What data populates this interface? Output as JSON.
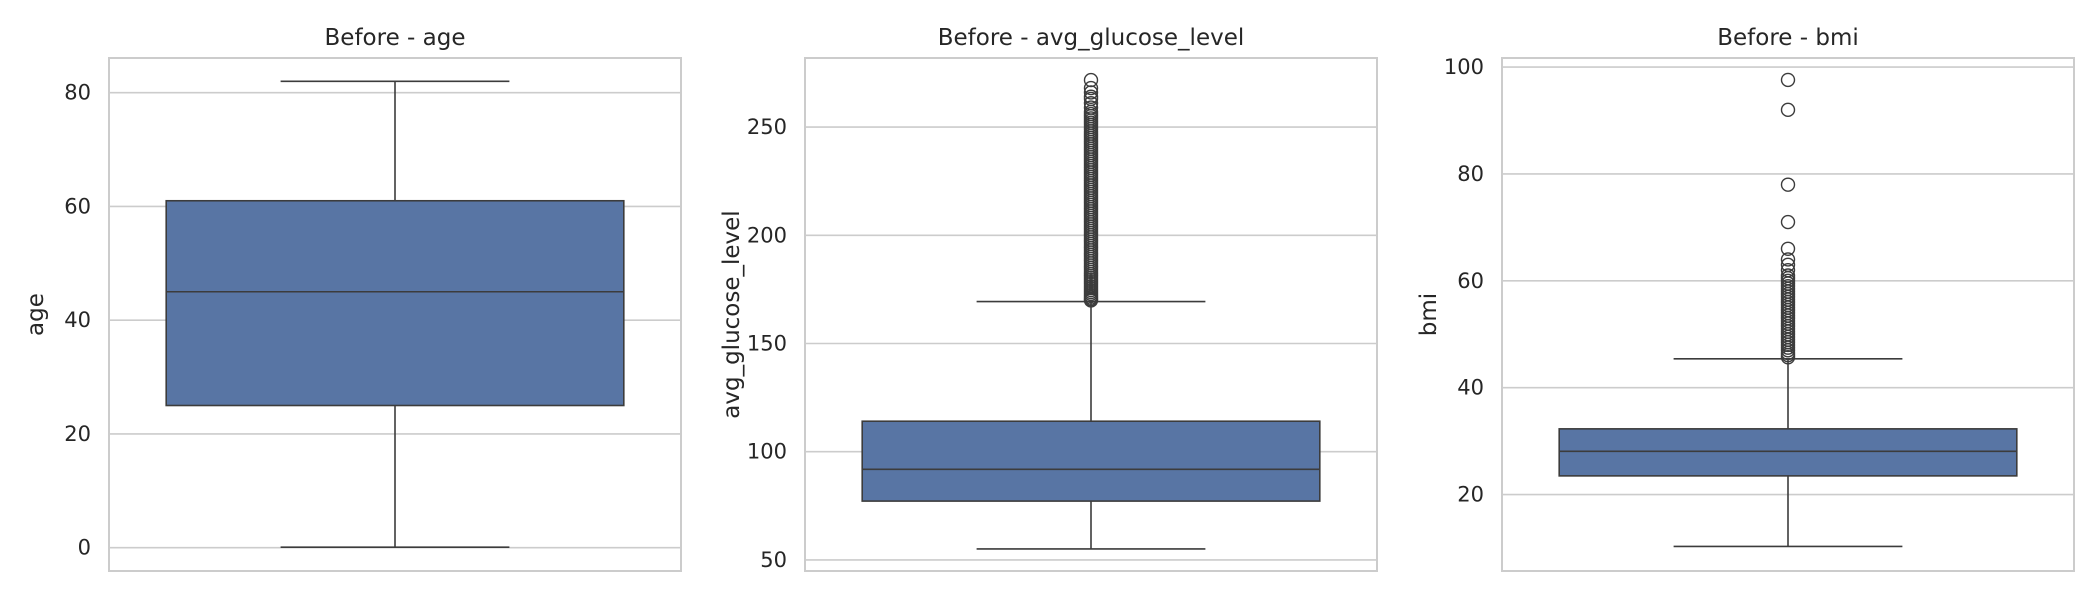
{
  "colors": {
    "box_fill": "#5875a4",
    "box_edge": "#3c3c3c",
    "grid": "#cccccc",
    "frame": "#cccccc",
    "text": "#262626"
  },
  "chart_data": [
    {
      "type": "box",
      "title": "Before - age",
      "ylabel": "age",
      "yticks": [
        0,
        20,
        40,
        60,
        80
      ],
      "ylim": [
        -4.1,
        86.1
      ],
      "grid": true,
      "whisker_low": 0.08,
      "q1": 25,
      "median": 45,
      "q3": 61,
      "whisker_high": 82,
      "outliers": []
    },
    {
      "type": "box",
      "title": "Before - avg_glucose_level",
      "ylabel": "avg_glucose_level",
      "yticks": [
        50,
        100,
        150,
        200,
        250
      ],
      "ylim": [
        44.9,
        281.9
      ],
      "grid": true,
      "whisker_low": 55.1,
      "q1": 77.2,
      "median": 91.9,
      "q3": 114.1,
      "whisker_high": 169.4,
      "outliers": [
        169.9,
        170.5,
        171.2,
        172,
        172.9,
        173.8,
        174.7,
        175.6,
        176.5,
        177.5,
        178.4,
        179.3,
        180.2,
        181.1,
        182,
        183,
        184,
        185,
        186,
        187,
        188,
        189,
        190,
        191,
        192,
        193,
        194,
        195,
        196,
        197,
        198,
        199,
        200,
        201,
        202,
        203,
        204,
        205,
        206,
        207,
        208,
        209,
        210,
        211,
        212,
        213,
        214,
        215,
        216,
        217,
        218,
        219,
        220,
        221,
        222,
        223,
        224,
        225,
        226,
        227,
        228,
        229,
        230,
        231,
        232,
        233,
        234,
        235,
        236,
        237,
        238,
        239,
        240,
        241,
        242,
        243,
        244,
        245,
        246,
        247,
        248,
        249,
        250,
        251,
        252,
        253,
        254,
        255,
        256,
        257,
        259,
        261,
        263,
        264,
        266,
        268,
        271.7
      ]
    },
    {
      "type": "box",
      "title": "Before - bmi",
      "ylabel": "bmi",
      "yticks": [
        20,
        40,
        60,
        80,
        100
      ],
      "ylim": [
        5.7,
        101.7
      ],
      "grid": true,
      "whisker_low": 10.3,
      "q1": 23.5,
      "median": 28.1,
      "q3": 32.3,
      "whisker_high": 45.4,
      "outliers": [
        45.7,
        46.1,
        46.5,
        47,
        47.5,
        48,
        48.5,
        49,
        49.5,
        50,
        50.5,
        51,
        51.5,
        52,
        52.5,
        53,
        53.5,
        54,
        54.5,
        55,
        55.5,
        56,
        56.5,
        57,
        57.5,
        58,
        58.5,
        59,
        59.5,
        60,
        60.5,
        61,
        62,
        63,
        64,
        66,
        71,
        78,
        92,
        97.6
      ]
    }
  ]
}
